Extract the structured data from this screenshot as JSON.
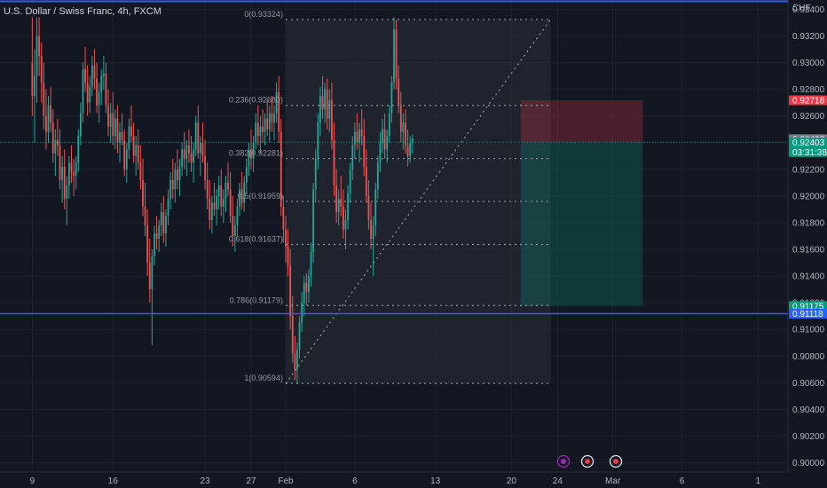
{
  "header": {
    "symbol_title": "U.S. Dollar / Swiss Franc, 4h, FXCM"
  },
  "colors": {
    "background": "#131722",
    "grid": "#1e222d",
    "axis_text": "#b2b5be",
    "up": "#26a69a",
    "down": "#ef5350",
    "blue_line": "#2962ff",
    "fib_line": "#9598a1",
    "stop_zone": "#f23645",
    "target_zone": "#089981",
    "current_price_tag": "#787b86",
    "last_price_tag": "#089981",
    "blue_tag": "#2962ff",
    "stop_tag": "#f23645"
  },
  "chart_data": {
    "type": "candlestick",
    "currency_label": "CHF",
    "y_ticks": [
      "0.93400",
      "0.93200",
      "0.93000",
      "0.92800",
      "0.92600",
      "0.92400",
      "0.92200",
      "0.92000",
      "0.91800",
      "0.91600",
      "0.91400",
      "0.91200",
      "0.91000",
      "0.90800",
      "0.90600",
      "0.90400",
      "0.90200",
      "0.90000"
    ],
    "y_tick_values": [
      0.934,
      0.932,
      0.93,
      0.928,
      0.926,
      0.924,
      0.922,
      0.92,
      0.918,
      0.916,
      0.914,
      0.912,
      0.91,
      0.908,
      0.906,
      0.904,
      0.902,
      0.9
    ],
    "ylim": [
      0.8993,
      0.9347
    ],
    "x_ticks": [
      "9",
      "16",
      "23",
      "27",
      "Feb",
      "6",
      "13",
      "20",
      "24",
      "Mar",
      "6",
      "1"
    ],
    "x_tick_index": [
      0,
      35,
      75,
      95,
      110,
      140,
      175,
      208,
      228,
      252,
      282,
      315
    ],
    "x_range": [
      -14,
      328
    ],
    "fib_levels": [
      {
        "label": "0(0.93324)",
        "value": 0.93324
      },
      {
        "label": "0.236(0.92680)",
        "value": 0.9268
      },
      {
        "label": "0.382(0.92281)",
        "value": 0.92281
      },
      {
        "label": "0.5(0.91959)",
        "value": 0.91959
      },
      {
        "label": "0.618(0.91637)",
        "value": 0.91637
      },
      {
        "label": "0.786(0.91179)",
        "value": 0.91179
      },
      {
        "label": "1(0.90594)",
        "value": 0.90594
      }
    ],
    "fib_start_index": 110,
    "fib_end_index": 225,
    "trend_line": {
      "from_index": 110,
      "from_value": 0.90594,
      "to_index": 225,
      "to_value": 0.93324
    },
    "horizontal_line": 0.91118,
    "position": {
      "start_index": 212,
      "end_index": 265,
      "entry": 0.92403,
      "stop": 0.92718,
      "target": 0.91175
    },
    "price_tags": [
      {
        "label": "0.92718",
        "value": 0.92718,
        "role": "stop"
      },
      {
        "label": "0.92426",
        "value": 0.92426,
        "role": "current"
      },
      {
        "label": "0.92403",
        "value": 0.92403,
        "role": "last"
      },
      {
        "label": "0.91175",
        "value": 0.91175,
        "role": "target"
      },
      {
        "label": "0.91118",
        "value": 0.91118,
        "role": "blue"
      }
    ],
    "countdown": "03:31:38",
    "ohlc": [
      [
        0.93,
        0.9334,
        0.926,
        0.9275
      ],
      [
        0.9275,
        0.931,
        0.924,
        0.929
      ],
      [
        0.929,
        0.9334,
        0.927,
        0.932
      ],
      [
        0.932,
        0.9334,
        0.929,
        0.9305
      ],
      [
        0.9305,
        0.9315,
        0.927,
        0.9285
      ],
      [
        0.9285,
        0.93,
        0.925,
        0.926
      ],
      [
        0.926,
        0.928,
        0.9235,
        0.9248
      ],
      [
        0.9248,
        0.9275,
        0.924,
        0.9268
      ],
      [
        0.9268,
        0.9282,
        0.9248,
        0.9255
      ],
      [
        0.9255,
        0.9265,
        0.9225,
        0.9232
      ],
      [
        0.9232,
        0.925,
        0.9215,
        0.9242
      ],
      [
        0.9242,
        0.9258,
        0.923,
        0.9238
      ],
      [
        0.9238,
        0.925,
        0.9205,
        0.9212
      ],
      [
        0.9212,
        0.923,
        0.9195,
        0.9222
      ],
      [
        0.9222,
        0.9235,
        0.919,
        0.9198
      ],
      [
        0.9198,
        0.9215,
        0.9178,
        0.9208
      ],
      [
        0.9208,
        0.923,
        0.9198,
        0.9225
      ],
      [
        0.9225,
        0.9238,
        0.921,
        0.9218
      ],
      [
        0.9218,
        0.9228,
        0.92,
        0.9215
      ],
      [
        0.9215,
        0.923,
        0.9205,
        0.9225
      ],
      [
        0.9225,
        0.925,
        0.9218,
        0.9245
      ],
      [
        0.9245,
        0.927,
        0.9238,
        0.9262
      ],
      [
        0.9262,
        0.93,
        0.9255,
        0.9295
      ],
      [
        0.9295,
        0.9312,
        0.9278,
        0.9285
      ],
      [
        0.9285,
        0.9298,
        0.926,
        0.927
      ],
      [
        0.927,
        0.929,
        0.9262,
        0.9282
      ],
      [
        0.9282,
        0.9305,
        0.9275,
        0.9298
      ],
      [
        0.9298,
        0.931,
        0.928,
        0.9288
      ],
      [
        0.9288,
        0.93,
        0.9262,
        0.9268
      ],
      [
        0.9268,
        0.9285,
        0.9255,
        0.9278
      ],
      [
        0.9278,
        0.9295,
        0.9268,
        0.929
      ],
      [
        0.929,
        0.9305,
        0.928,
        0.9292
      ],
      [
        0.9292,
        0.93,
        0.9262,
        0.9268
      ],
      [
        0.9268,
        0.928,
        0.9245,
        0.9252
      ],
      [
        0.9252,
        0.927,
        0.924,
        0.9262
      ],
      [
        0.9262,
        0.9278,
        0.9238,
        0.9245
      ],
      [
        0.9245,
        0.9265,
        0.9235,
        0.9258
      ],
      [
        0.9258,
        0.9268,
        0.9232,
        0.924
      ],
      [
        0.924,
        0.9255,
        0.9225,
        0.9248
      ],
      [
        0.9248,
        0.9262,
        0.9238,
        0.9242
      ],
      [
        0.9242,
        0.925,
        0.9215,
        0.922
      ],
      [
        0.922,
        0.924,
        0.921,
        0.9235
      ],
      [
        0.9235,
        0.9258,
        0.9228,
        0.9252
      ],
      [
        0.9252,
        0.9268,
        0.924,
        0.9245
      ],
      [
        0.9245,
        0.9255,
        0.9225,
        0.923
      ],
      [
        0.923,
        0.9245,
        0.9215,
        0.9238
      ],
      [
        0.9238,
        0.925,
        0.922,
        0.9225
      ],
      [
        0.9225,
        0.9238,
        0.9205,
        0.9212
      ],
      [
        0.9212,
        0.9228,
        0.9185,
        0.9192
      ],
      [
        0.9192,
        0.921,
        0.917,
        0.9178
      ],
      [
        0.9178,
        0.919,
        0.914,
        0.915
      ],
      [
        0.915,
        0.9168,
        0.912,
        0.913
      ],
      [
        0.913,
        0.916,
        0.9088,
        0.9155
      ],
      [
        0.9155,
        0.9178,
        0.9148,
        0.9172
      ],
      [
        0.9172,
        0.9185,
        0.916,
        0.9168
      ],
      [
        0.9168,
        0.9182,
        0.9158,
        0.9178
      ],
      [
        0.9178,
        0.9195,
        0.917,
        0.9188
      ],
      [
        0.9188,
        0.92,
        0.9165,
        0.9172
      ],
      [
        0.9172,
        0.919,
        0.9162,
        0.9185
      ],
      [
        0.9185,
        0.9205,
        0.9178,
        0.9198
      ],
      [
        0.9198,
        0.9218,
        0.919,
        0.9212
      ],
      [
        0.9212,
        0.9228,
        0.9198,
        0.9205
      ],
      [
        0.9205,
        0.9225,
        0.9195,
        0.922
      ],
      [
        0.922,
        0.9235,
        0.9205,
        0.9212
      ],
      [
        0.9212,
        0.9228,
        0.92,
        0.9222
      ],
      [
        0.9222,
        0.924,
        0.9215,
        0.9235
      ],
      [
        0.9235,
        0.9248,
        0.922,
        0.9228
      ],
      [
        0.9228,
        0.9242,
        0.9215,
        0.9238
      ],
      [
        0.9238,
        0.925,
        0.9225,
        0.9232
      ],
      [
        0.9232,
        0.9245,
        0.9218,
        0.9225
      ],
      [
        0.9225,
        0.924,
        0.921,
        0.9235
      ],
      [
        0.9235,
        0.926,
        0.923,
        0.9255
      ],
      [
        0.9255,
        0.9268,
        0.9228,
        0.9232
      ],
      [
        0.9232,
        0.9245,
        0.9215,
        0.924
      ],
      [
        0.924,
        0.9255,
        0.9225,
        0.923
      ],
      [
        0.923,
        0.9242,
        0.9205,
        0.9212
      ],
      [
        0.9212,
        0.9225,
        0.919,
        0.9198
      ],
      [
        0.9198,
        0.9212,
        0.9175,
        0.9182
      ],
      [
        0.9182,
        0.92,
        0.9172,
        0.9195
      ],
      [
        0.9195,
        0.921,
        0.9185,
        0.919
      ],
      [
        0.919,
        0.9205,
        0.9178,
        0.92
      ],
      [
        0.92,
        0.9215,
        0.919,
        0.9208
      ],
      [
        0.9208,
        0.922,
        0.9185,
        0.9192
      ],
      [
        0.9192,
        0.9205,
        0.918,
        0.9198
      ],
      [
        0.9198,
        0.9215,
        0.9188,
        0.921
      ],
      [
        0.921,
        0.9225,
        0.92,
        0.9205
      ],
      [
        0.9205,
        0.9218,
        0.918,
        0.9185
      ],
      [
        0.9185,
        0.92,
        0.9162,
        0.917
      ],
      [
        0.917,
        0.9185,
        0.9158,
        0.9178
      ],
      [
        0.9178,
        0.9198,
        0.917,
        0.9192
      ],
      [
        0.9192,
        0.921,
        0.9185,
        0.9205
      ],
      [
        0.9205,
        0.9218,
        0.919,
        0.9195
      ],
      [
        0.9195,
        0.9215,
        0.9188,
        0.921
      ],
      [
        0.921,
        0.9228,
        0.9202,
        0.9222
      ],
      [
        0.9222,
        0.924,
        0.9215,
        0.9235
      ],
      [
        0.9235,
        0.925,
        0.922,
        0.9228
      ],
      [
        0.9228,
        0.9245,
        0.9218,
        0.924
      ],
      [
        0.924,
        0.9262,
        0.9235,
        0.9255
      ],
      [
        0.9255,
        0.9268,
        0.9238,
        0.9245
      ],
      [
        0.9245,
        0.926,
        0.9232,
        0.9252
      ],
      [
        0.9252,
        0.9265,
        0.924,
        0.9248
      ],
      [
        0.9248,
        0.9262,
        0.9238,
        0.9258
      ],
      [
        0.9258,
        0.9272,
        0.9245,
        0.925
      ],
      [
        0.925,
        0.9268,
        0.924,
        0.9262
      ],
      [
        0.9262,
        0.9275,
        0.9248,
        0.9255
      ],
      [
        0.9255,
        0.9268,
        0.9242,
        0.9262
      ],
      [
        0.9262,
        0.9285,
        0.9255,
        0.9278
      ],
      [
        0.9278,
        0.929,
        0.924,
        0.9248
      ],
      [
        0.9248,
        0.9258,
        0.9185,
        0.9192
      ],
      [
        0.9192,
        0.92,
        0.9165,
        0.9175
      ],
      [
        0.9175,
        0.9185,
        0.915,
        0.9162
      ],
      [
        0.9162,
        0.9175,
        0.914,
        0.9148
      ],
      [
        0.9148,
        0.916,
        0.91,
        0.911
      ],
      [
        0.911,
        0.9125,
        0.9075,
        0.9082
      ],
      [
        0.9082,
        0.9095,
        0.9062,
        0.907
      ],
      [
        0.907,
        0.909,
        0.9059,
        0.9085
      ],
      [
        0.9085,
        0.911,
        0.9078,
        0.9105
      ],
      [
        0.9105,
        0.9128,
        0.9098,
        0.912
      ],
      [
        0.912,
        0.914,
        0.911,
        0.9135
      ],
      [
        0.9135,
        0.9142,
        0.9118,
        0.9128
      ],
      [
        0.9128,
        0.9145,
        0.912,
        0.914
      ],
      [
        0.914,
        0.9165,
        0.9132,
        0.9158
      ],
      [
        0.9158,
        0.921,
        0.915,
        0.9205
      ],
      [
        0.9205,
        0.9235,
        0.9195,
        0.9228
      ],
      [
        0.9228,
        0.9262,
        0.922,
        0.9255
      ],
      [
        0.9255,
        0.9282,
        0.9245,
        0.9275
      ],
      [
        0.9275,
        0.929,
        0.9258,
        0.9265
      ],
      [
        0.9265,
        0.9285,
        0.9255,
        0.928
      ],
      [
        0.928,
        0.9288,
        0.925,
        0.9258
      ],
      [
        0.9258,
        0.928,
        0.9248,
        0.9272
      ],
      [
        0.9272,
        0.9285,
        0.9235,
        0.9242
      ],
      [
        0.9242,
        0.9255,
        0.92,
        0.9208
      ],
      [
        0.9208,
        0.922,
        0.918,
        0.9188
      ],
      [
        0.9188,
        0.9205,
        0.9178,
        0.9198
      ],
      [
        0.9198,
        0.9215,
        0.9185,
        0.9192
      ],
      [
        0.9192,
        0.9205,
        0.9168,
        0.9175
      ],
      [
        0.9175,
        0.919,
        0.916,
        0.9182
      ],
      [
        0.9182,
        0.9208,
        0.9175,
        0.9202
      ],
      [
        0.9202,
        0.9225,
        0.9195,
        0.922
      ],
      [
        0.922,
        0.9245,
        0.9212,
        0.9238
      ],
      [
        0.9238,
        0.9255,
        0.9228,
        0.9248
      ],
      [
        0.9248,
        0.9262,
        0.9235,
        0.924
      ],
      [
        0.924,
        0.9255,
        0.9225,
        0.925
      ],
      [
        0.925,
        0.9265,
        0.9238,
        0.9245
      ],
      [
        0.9245,
        0.9258,
        0.9215,
        0.9222
      ],
      [
        0.9222,
        0.9235,
        0.9195,
        0.92
      ],
      [
        0.92,
        0.9212,
        0.9175,
        0.9182
      ],
      [
        0.9182,
        0.9195,
        0.916,
        0.9168
      ],
      [
        0.9168,
        0.9185,
        0.914,
        0.9178
      ],
      [
        0.9178,
        0.921,
        0.917,
        0.9205
      ],
      [
        0.9205,
        0.923,
        0.9198,
        0.9225
      ],
      [
        0.9225,
        0.9248,
        0.9218,
        0.924
      ],
      [
        0.924,
        0.9258,
        0.9232,
        0.925
      ],
      [
        0.925,
        0.9262,
        0.9228,
        0.9235
      ],
      [
        0.9235,
        0.925,
        0.9225,
        0.9245
      ],
      [
        0.9245,
        0.9268,
        0.924,
        0.9262
      ],
      [
        0.9262,
        0.929,
        0.9255,
        0.9285
      ],
      [
        0.9285,
        0.9334,
        0.928,
        0.9325
      ],
      [
        0.9325,
        0.9332,
        0.928,
        0.9288
      ],
      [
        0.9288,
        0.9298,
        0.9262,
        0.9268
      ],
      [
        0.9268,
        0.9278,
        0.924,
        0.9248
      ],
      [
        0.9248,
        0.9262,
        0.9235,
        0.9255
      ],
      [
        0.9255,
        0.9265,
        0.9232,
        0.9238
      ],
      [
        0.9238,
        0.925,
        0.9222,
        0.923
      ],
      [
        0.923,
        0.9245,
        0.9225,
        0.924
      ],
      [
        0.924,
        0.9246,
        0.9232,
        0.9243
      ]
    ]
  }
}
